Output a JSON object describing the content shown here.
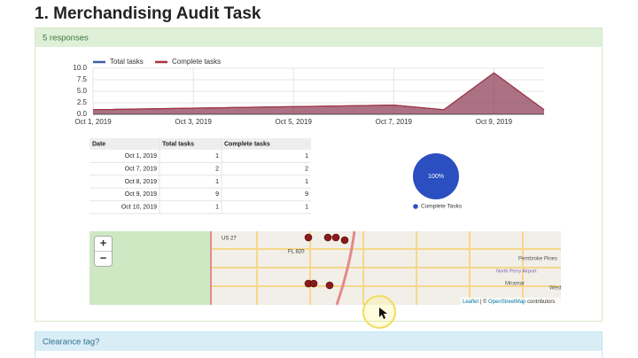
{
  "header": {
    "title": "1. Merchandising Audit Task"
  },
  "panel": {
    "responses": "5 responses"
  },
  "chart_data": [
    {
      "type": "area",
      "x": [
        "2019-10-01",
        "2019-10-07",
        "2019-10-08",
        "2019-10-09",
        "2019-10-10"
      ],
      "series": [
        {
          "name": "Total tasks",
          "color": "#3d5fa6",
          "values": [
            1,
            2,
            1,
            9,
            1
          ]
        },
        {
          "name": "Complete tasks",
          "color": "#a8323e",
          "values": [
            1,
            2,
            1,
            9,
            1
          ]
        }
      ],
      "xlim": [
        "2019-10-01",
        "2019-10-10"
      ],
      "xticks": [
        {
          "value": "2019-10-01",
          "label": "Oct 1, 2019"
        },
        {
          "value": "2019-10-03",
          "label": "Oct 3, 2019"
        },
        {
          "value": "2019-10-05",
          "label": "Oct 5, 2019"
        },
        {
          "value": "2019-10-07",
          "label": "Oct 7, 2019"
        },
        {
          "value": "2019-10-09",
          "label": "Oct 9, 2019"
        }
      ],
      "ylim": [
        0,
        10
      ],
      "yticks": [
        {
          "value": 0,
          "label": "0.0"
        },
        2.5,
        {
          "value": 5,
          "label": "5.0"
        },
        7.5,
        {
          "value": 10,
          "label": "10.0"
        }
      ],
      "grid": true
    },
    {
      "type": "pie",
      "series": [
        {
          "name": "Complete Tasks",
          "color": "#2b4fc0",
          "values": [
            100
          ],
          "value_labels": [
            "100%"
          ]
        }
      ]
    }
  ],
  "table": {
    "columns": [
      "Date",
      "Total tasks",
      "Complete tasks"
    ],
    "rows": [
      [
        "Oct 1, 2019",
        1,
        1
      ],
      [
        "Oct 7, 2019",
        2,
        2
      ],
      [
        "Oct 8, 2019",
        1,
        1
      ],
      [
        "Oct 9, 2019",
        9,
        9
      ],
      [
        "Oct 10, 2019",
        1,
        1
      ]
    ]
  },
  "map": {
    "zoom_in": "+",
    "zoom_out": "−",
    "labels": [
      "US 27",
      "FL 820",
      "Pembroke Pines",
      "North Perry Airport",
      "Miramar",
      "West"
    ],
    "attribution": [
      "Leaflet",
      "| ©",
      "OpenStreetMap",
      "contributors"
    ]
  },
  "next_panel": {
    "title": "Clearance tag?"
  }
}
